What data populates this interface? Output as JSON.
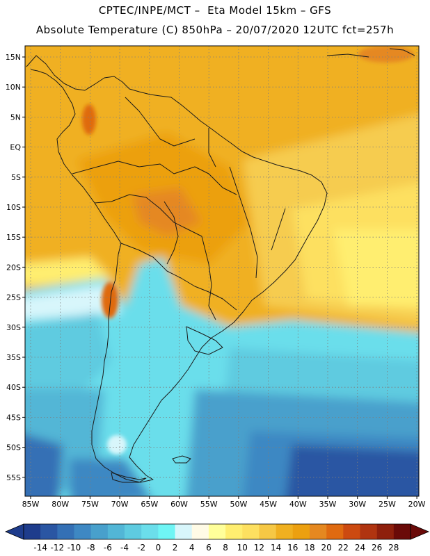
{
  "header": {
    "line1": "CPTEC/INPE/MCT –  Eta Model 15km – GFS",
    "line2": "Absolute Temperature (C) 850hPa – 20/07/2020 12UTC fct=257h"
  },
  "map": {
    "region": "South America",
    "lat_labels": [
      "15N",
      "10N",
      "5N",
      "EQ",
      "5S",
      "10S",
      "15S",
      "20S",
      "25S",
      "30S",
      "35S",
      "40S",
      "45S",
      "50S",
      "55S"
    ],
    "lon_labels": [
      "85W",
      "80W",
      "75W",
      "70W",
      "65W",
      "60W",
      "55W",
      "50W",
      "45W",
      "40W",
      "35W",
      "30W",
      "25W",
      "20W"
    ]
  },
  "colorbar": {
    "colors": [
      "#1e3c8c",
      "#2a56a3",
      "#3470b5",
      "#3e88c3",
      "#48a0cc",
      "#52b6d6",
      "#5ecbe0",
      "#6bdeeb",
      "#6ff5f5",
      "#d8f6fb",
      "#fffbe6",
      "#ffff9a",
      "#ffee70",
      "#fde060",
      "#f6c845",
      "#f0b020",
      "#eca010",
      "#e58820",
      "#df6a10",
      "#cc4a10",
      "#b03410",
      "#8e1f0c",
      "#6a0a08"
    ],
    "ticks": [
      "-14",
      "-12",
      "-10",
      "-8",
      "-6",
      "-4",
      "-2",
      "0",
      "2",
      "4",
      "6",
      "8",
      "10",
      "12",
      "14",
      "16",
      "18",
      "20",
      "22",
      "24",
      "26",
      "28"
    ],
    "under_color": "#1e3c8c",
    "over_color": "#6a0a08"
  }
}
